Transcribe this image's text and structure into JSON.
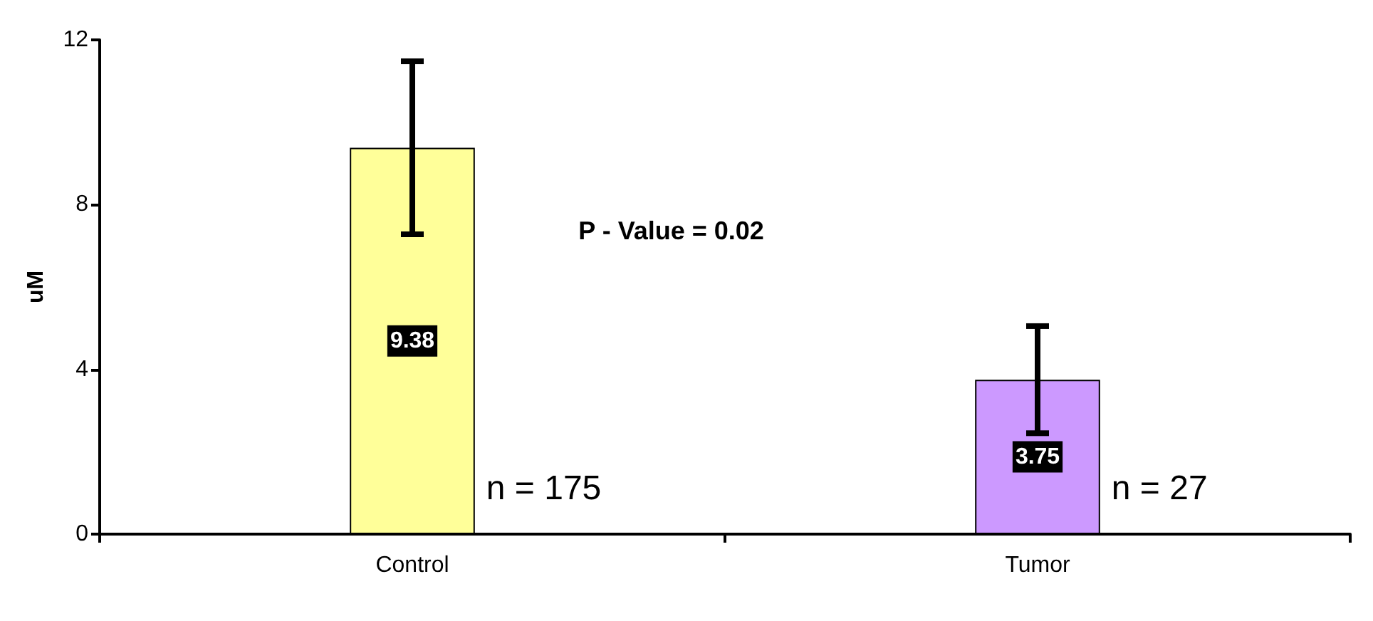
{
  "chart_data": {
    "type": "bar",
    "ylabel": "uM",
    "categories": [
      "Control",
      "Tumor"
    ],
    "values": [
      9.38,
      3.75
    ],
    "colors": [
      "#ffff99",
      "#cc99ff"
    ],
    "errors": [
      2.1,
      1.3
    ],
    "ylim": [
      0,
      12
    ],
    "yticks": [
      0,
      4,
      8,
      12
    ],
    "grid": false,
    "data_labels": true,
    "annotations": [
      "P - Value = 0.02",
      "n = 175",
      "n = 27"
    ]
  }
}
